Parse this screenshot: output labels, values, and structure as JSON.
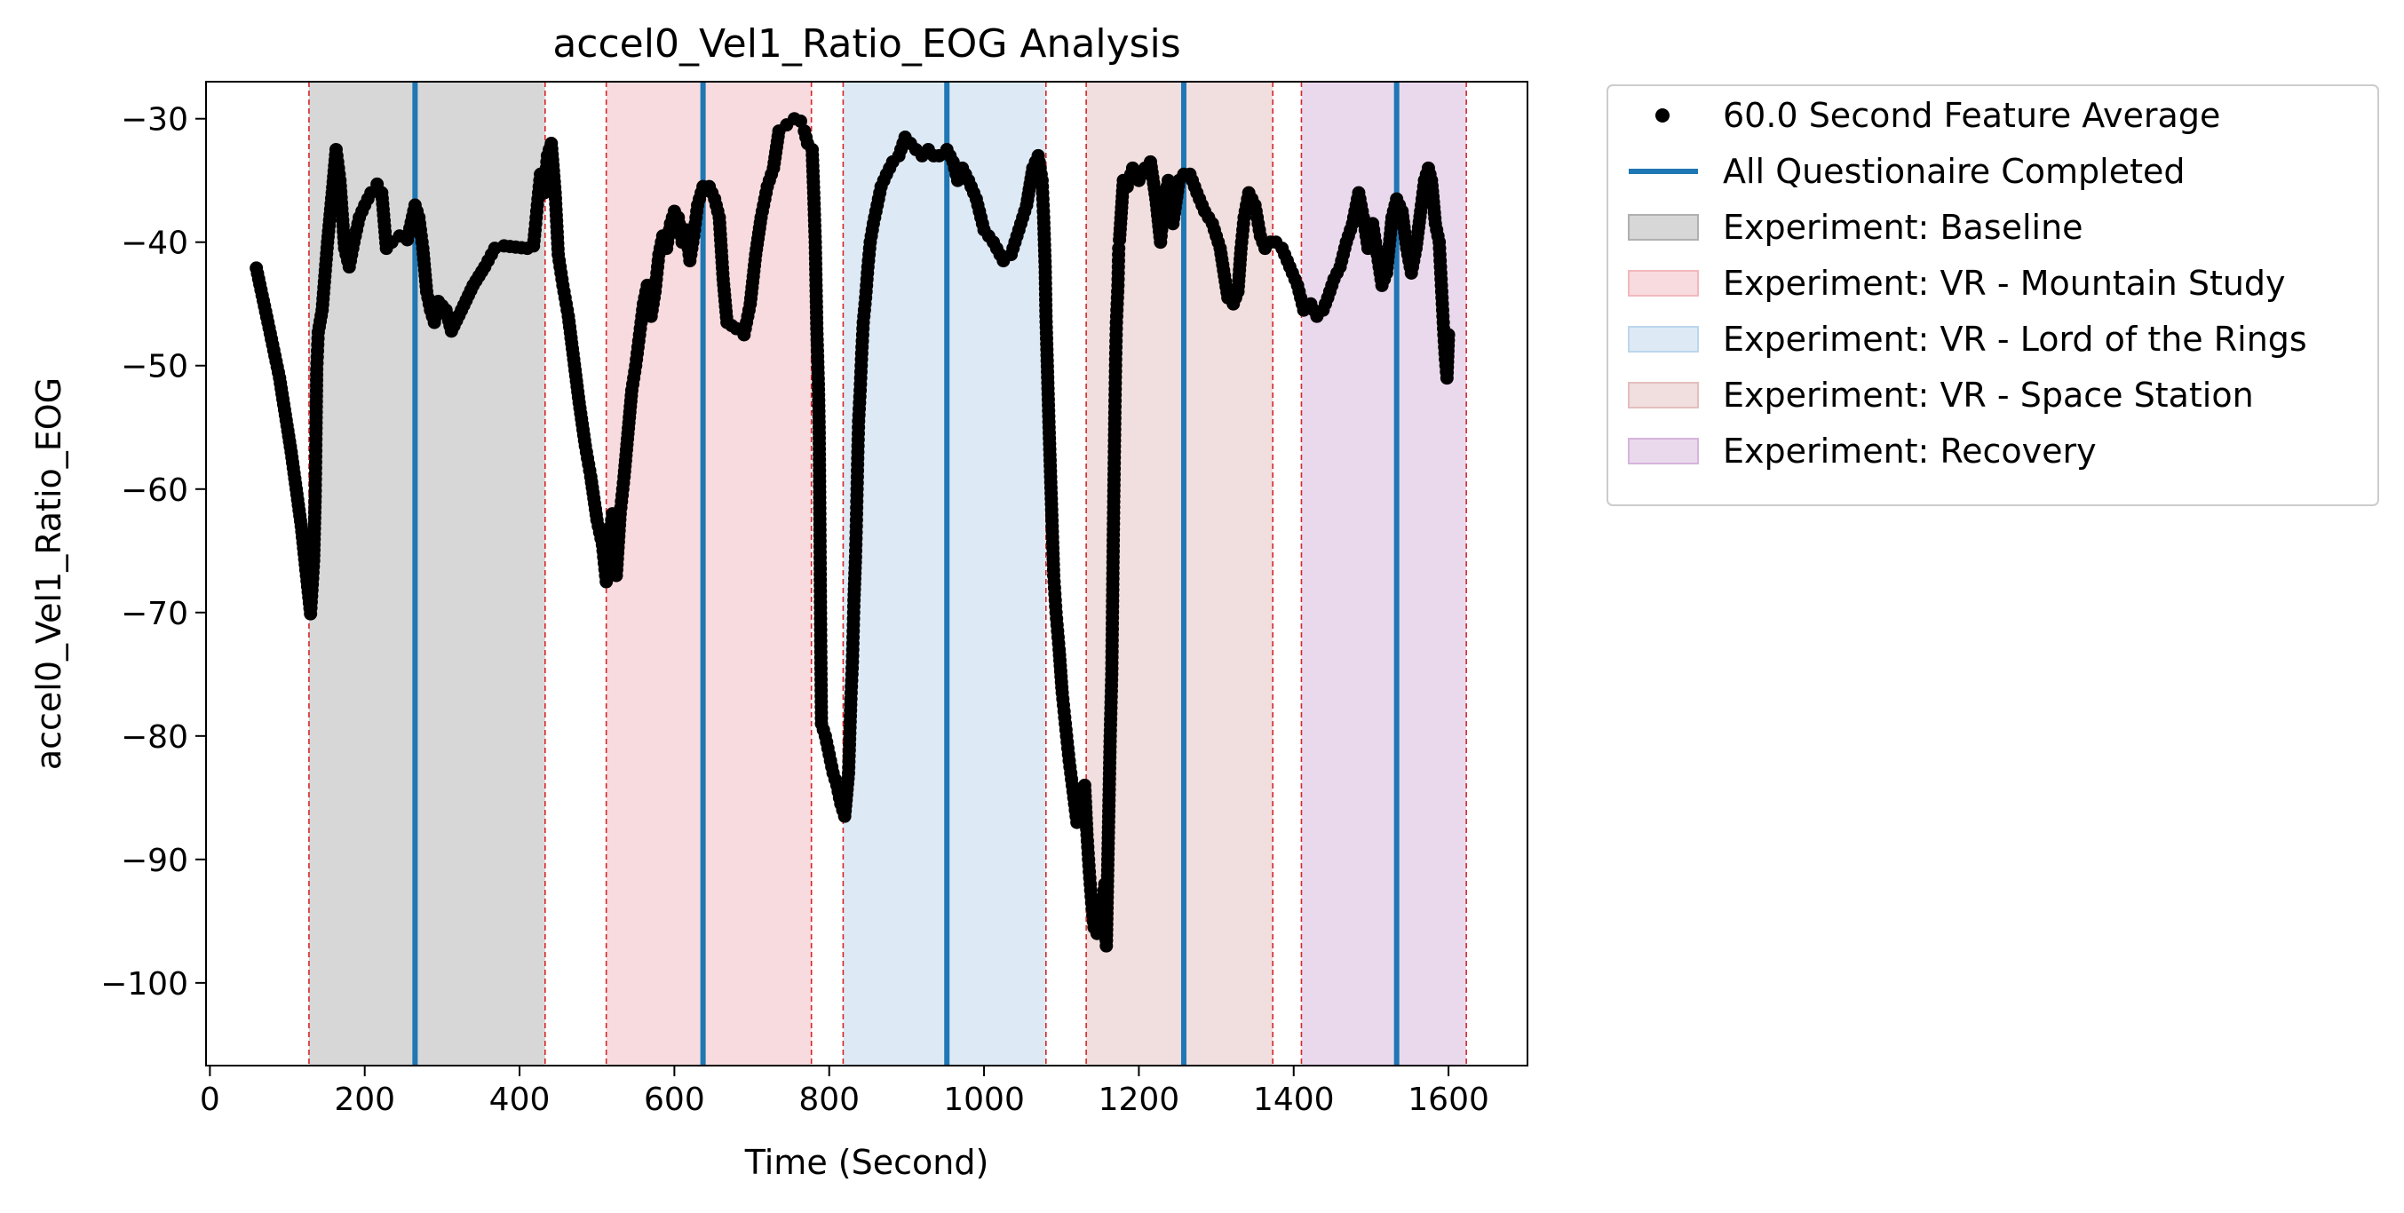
{
  "chart_data": {
    "type": "scatter",
    "title": "accel0_Vel1_Ratio_EOG Analysis",
    "xlabel": "Time (Second)",
    "ylabel": "accel0_Vel1_Ratio_EOG",
    "xlim": [
      -5,
      1702
    ],
    "ylim": [
      -106.7,
      -27.0
    ],
    "xticks": [
      0,
      200,
      400,
      600,
      800,
      1000,
      1200,
      1400,
      1600
    ],
    "yticks": [
      -100,
      -90,
      -80,
      -70,
      -60,
      -50,
      -40,
      -30
    ],
    "grid": false,
    "legend_position": "outside-right-top",
    "colors": {
      "points": "#000000",
      "questionnaire_line": "#1f77b4",
      "boundary_line": "#d62728"
    },
    "legend": [
      {
        "label": "60.0 Second Feature Average",
        "kind": "marker",
        "color": "#000000"
      },
      {
        "label": "All Questionaire Completed",
        "kind": "line",
        "color": "#1f77b4"
      },
      {
        "label": "Experiment: Baseline",
        "kind": "patch",
        "color": "#b0b0b0"
      },
      {
        "label": "Experiment: VR - Mountain Study",
        "kind": "patch",
        "color": "#f2b8bd"
      },
      {
        "label": "Experiment: VR - Lord of the Rings",
        "kind": "patch",
        "color": "#bcd6ec"
      },
      {
        "label": "Experiment: VR - Space Station",
        "kind": "patch",
        "color": "#e3bebe"
      },
      {
        "label": "Experiment: Recovery",
        "kind": "patch",
        "color": "#d6b4dc"
      }
    ],
    "phases": [
      {
        "name": "Experiment: Baseline",
        "start": 128,
        "end": 433,
        "color": "#b0b0b0"
      },
      {
        "name": "Experiment: VR - Mountain Study",
        "start": 512,
        "end": 777,
        "color": "#f2b8bd"
      },
      {
        "name": "Experiment: VR - Lord of the Rings",
        "start": 818,
        "end": 1080,
        "color": "#bcd6ec"
      },
      {
        "name": "Experiment: VR - Space Station",
        "start": 1132,
        "end": 1373,
        "color": "#e3bebe"
      },
      {
        "name": "Experiment: Recovery",
        "start": 1410,
        "end": 1623,
        "color": "#d6b4dc"
      }
    ],
    "questionnaire_completed": [
      265,
      637,
      952,
      1258,
      1533
    ],
    "series": [
      {
        "name": "60.0 Second Feature Average",
        "points": [
          [
            60,
            -42.1
          ],
          [
            75,
            -46.5
          ],
          [
            90,
            -51.0
          ],
          [
            105,
            -57.0
          ],
          [
            118,
            -63.0
          ],
          [
            130,
            -70.1
          ],
          [
            134,
            -65.8
          ],
          [
            136,
            -60.6
          ],
          [
            137,
            -55.5
          ],
          [
            138,
            -50.3
          ],
          [
            140,
            -47.3
          ],
          [
            145,
            -45.5
          ],
          [
            152,
            -40.0
          ],
          [
            158,
            -36.0
          ],
          [
            163,
            -32.5
          ],
          [
            168,
            -35.0
          ],
          [
            174,
            -40.5
          ],
          [
            180,
            -42.0
          ],
          [
            186,
            -40.0
          ],
          [
            193,
            -38.0
          ],
          [
            200,
            -37.0
          ],
          [
            208,
            -36.0
          ],
          [
            216,
            -35.3
          ],
          [
            222,
            -36.0
          ],
          [
            228,
            -40.5
          ],
          [
            235,
            -40.0
          ],
          [
            245,
            -39.5
          ],
          [
            255,
            -39.8
          ],
          [
            265,
            -37.0
          ],
          [
            270,
            -38.0
          ],
          [
            275,
            -40.5
          ],
          [
            280,
            -44.0
          ],
          [
            285,
            -45.5
          ],
          [
            290,
            -46.5
          ],
          [
            295,
            -44.8
          ],
          [
            305,
            -45.5
          ],
          [
            312,
            -47.2
          ],
          [
            325,
            -45.5
          ],
          [
            340,
            -43.5
          ],
          [
            355,
            -42.0
          ],
          [
            368,
            -40.5
          ],
          [
            380,
            -40.3
          ],
          [
            395,
            -40.4
          ],
          [
            410,
            -40.5
          ],
          [
            418,
            -40.3
          ],
          [
            420,
            -39.0
          ],
          [
            423,
            -37.0
          ],
          [
            427,
            -34.5
          ],
          [
            432,
            -36.0
          ],
          [
            436,
            -33.0
          ],
          [
            441,
            -32.0
          ],
          [
            446,
            -36.0
          ],
          [
            450,
            -41.0
          ],
          [
            456,
            -43.5
          ],
          [
            463,
            -46.0
          ],
          [
            470,
            -49.5
          ],
          [
            477,
            -53.0
          ],
          [
            485,
            -56.5
          ],
          [
            492,
            -59.0
          ],
          [
            500,
            -62.5
          ],
          [
            507,
            -64.5
          ],
          [
            512,
            -67.5
          ],
          [
            516,
            -64.0
          ],
          [
            520,
            -62.0
          ],
          [
            525,
            -67.0
          ],
          [
            530,
            -62.0
          ],
          [
            535,
            -59.0
          ],
          [
            540,
            -55.5
          ],
          [
            545,
            -52.0
          ],
          [
            550,
            -50.0
          ],
          [
            555,
            -47.5
          ],
          [
            560,
            -45.0
          ],
          [
            565,
            -43.5
          ],
          [
            570,
            -46.0
          ],
          [
            575,
            -44.0
          ],
          [
            580,
            -41.0
          ],
          [
            585,
            -39.5
          ],
          [
            590,
            -40.5
          ],
          [
            595,
            -38.5
          ],
          [
            600,
            -37.5
          ],
          [
            605,
            -38.0
          ],
          [
            610,
            -40.0
          ],
          [
            615,
            -39.0
          ],
          [
            620,
            -41.5
          ],
          [
            625,
            -39.5
          ],
          [
            630,
            -37.0
          ],
          [
            637,
            -35.5
          ],
          [
            645,
            -35.5
          ],
          [
            652,
            -36.5
          ],
          [
            658,
            -38.0
          ],
          [
            663,
            -43.0
          ],
          [
            668,
            -46.5
          ],
          [
            680,
            -47.0
          ],
          [
            690,
            -47.5
          ],
          [
            698,
            -45.0
          ],
          [
            705,
            -41.0
          ],
          [
            712,
            -38.0
          ],
          [
            720,
            -35.5
          ],
          [
            728,
            -34.0
          ],
          [
            735,
            -31.0
          ],
          [
            745,
            -30.5
          ],
          [
            755,
            -30.0
          ],
          [
            763,
            -30.2
          ],
          [
            768,
            -31.0
          ],
          [
            772,
            -32.0
          ],
          [
            778,
            -32.5
          ],
          [
            780,
            -36.0
          ],
          [
            782,
            -40.0
          ],
          [
            783,
            -43.5
          ],
          [
            784,
            -47.0
          ],
          [
            786,
            -51.5
          ],
          [
            787,
            -55.0
          ],
          [
            788,
            -63.3
          ],
          [
            789,
            -72.3
          ],
          [
            790,
            -79.0
          ],
          [
            795,
            -80.0
          ],
          [
            800,
            -81.5
          ],
          [
            805,
            -83.0
          ],
          [
            810,
            -84.0
          ],
          [
            815,
            -85.5
          ],
          [
            820,
            -86.5
          ],
          [
            825,
            -83.0
          ],
          [
            828,
            -77.0
          ],
          [
            830,
            -74.0
          ],
          [
            831,
            -71.5
          ],
          [
            832,
            -69.0
          ],
          [
            834,
            -65.5
          ],
          [
            835,
            -63.0
          ],
          [
            836,
            -60.0
          ],
          [
            837,
            -57.0
          ],
          [
            838,
            -54.5
          ],
          [
            840,
            -52.0
          ],
          [
            842,
            -49.0
          ],
          [
            844,
            -46.5
          ],
          [
            847,
            -44.5
          ],
          [
            850,
            -42.0
          ],
          [
            853,
            -40.0
          ],
          [
            857,
            -38.5
          ],
          [
            862,
            -37.0
          ],
          [
            867,
            -35.5
          ],
          [
            874,
            -34.5
          ],
          [
            882,
            -33.5
          ],
          [
            890,
            -33.0
          ],
          [
            898,
            -31.5
          ],
          [
            905,
            -32.0
          ],
          [
            912,
            -32.5
          ],
          [
            920,
            -33.0
          ],
          [
            928,
            -32.5
          ],
          [
            935,
            -33.0
          ],
          [
            942,
            -33.0
          ],
          [
            952,
            -32.5
          ],
          [
            960,
            -33.5
          ],
          [
            966,
            -35.0
          ],
          [
            972,
            -34.0
          ],
          [
            980,
            -35.0
          ],
          [
            990,
            -36.5
          ],
          [
            1000,
            -39.0
          ],
          [
            1012,
            -40.0
          ],
          [
            1025,
            -41.5
          ],
          [
            1035,
            -41.0
          ],
          [
            1045,
            -39.0
          ],
          [
            1055,
            -37.0
          ],
          [
            1063,
            -34.0
          ],
          [
            1070,
            -33.0
          ],
          [
            1075,
            -35.0
          ],
          [
            1077,
            -38.0
          ],
          [
            1079,
            -42.0
          ],
          [
            1080,
            -46.0
          ],
          [
            1082,
            -50.5
          ],
          [
            1084,
            -55.0
          ],
          [
            1086,
            -59.0
          ],
          [
            1088,
            -63.0
          ],
          [
            1090,
            -67.0
          ],
          [
            1093,
            -70.0
          ],
          [
            1097,
            -73.0
          ],
          [
            1101,
            -76.5
          ],
          [
            1105,
            -79.0
          ],
          [
            1110,
            -82.0
          ],
          [
            1115,
            -84.5
          ],
          [
            1120,
            -87.0
          ],
          [
            1126,
            -86.0
          ],
          [
            1130,
            -84.0
          ],
          [
            1133,
            -88.0
          ],
          [
            1136,
            -91.0
          ],
          [
            1139,
            -93.5
          ],
          [
            1142,
            -95.5
          ],
          [
            1146,
            -96.0
          ],
          [
            1150,
            -95.0
          ],
          [
            1154,
            -93.0
          ],
          [
            1156,
            -92.0
          ],
          [
            1158,
            -97.0
          ],
          [
            1160,
            -90.0
          ],
          [
            1163,
            -80.0
          ],
          [
            1165,
            -75.0
          ],
          [
            1166,
            -69.5
          ],
          [
            1167,
            -63.7
          ],
          [
            1168,
            -58.8
          ],
          [
            1169,
            -53.8
          ],
          [
            1170,
            -49.5
          ],
          [
            1171,
            -46.5
          ],
          [
            1173,
            -43.5
          ],
          [
            1174,
            -40.5
          ],
          [
            1175,
            -39.8
          ],
          [
            1180,
            -35.0
          ],
          [
            1185,
            -35.5
          ],
          [
            1192,
            -34.0
          ],
          [
            1200,
            -35.0
          ],
          [
            1208,
            -34.0
          ],
          [
            1215,
            -33.5
          ],
          [
            1222,
            -36.5
          ],
          [
            1228,
            -40.0
          ],
          [
            1232,
            -37.0
          ],
          [
            1238,
            -35.0
          ],
          [
            1244,
            -38.5
          ],
          [
            1252,
            -35.0
          ],
          [
            1258,
            -34.5
          ],
          [
            1266,
            -34.5
          ],
          [
            1275,
            -36.0
          ],
          [
            1285,
            -37.5
          ],
          [
            1295,
            -38.5
          ],
          [
            1305,
            -40.5
          ],
          [
            1315,
            -44.5
          ],
          [
            1322,
            -45.0
          ],
          [
            1328,
            -44.0
          ],
          [
            1332,
            -40.5
          ],
          [
            1336,
            -38.0
          ],
          [
            1342,
            -36.0
          ],
          [
            1350,
            -37.0
          ],
          [
            1357,
            -39.5
          ],
          [
            1363,
            -40.5
          ],
          [
            1370,
            -40.0
          ],
          [
            1377,
            -40.0
          ],
          [
            1385,
            -40.5
          ],
          [
            1395,
            -42.0
          ],
          [
            1405,
            -43.5
          ],
          [
            1413,
            -45.5
          ],
          [
            1422,
            -45.0
          ],
          [
            1430,
            -46.0
          ],
          [
            1438,
            -45.5
          ],
          [
            1444,
            -44.5
          ],
          [
            1452,
            -43.0
          ],
          [
            1460,
            -42.0
          ],
          [
            1468,
            -40.0
          ],
          [
            1476,
            -38.5
          ],
          [
            1484,
            -36.0
          ],
          [
            1490,
            -38.0
          ],
          [
            1496,
            -40.5
          ],
          [
            1502,
            -38.5
          ],
          [
            1508,
            -41.0
          ],
          [
            1514,
            -43.5
          ],
          [
            1520,
            -42.5
          ],
          [
            1527,
            -38.0
          ],
          [
            1533,
            -36.5
          ],
          [
            1540,
            -37.5
          ],
          [
            1546,
            -40.5
          ],
          [
            1552,
            -42.5
          ],
          [
            1558,
            -40.5
          ],
          [
            1564,
            -37.5
          ],
          [
            1569,
            -35.0
          ],
          [
            1574,
            -34.0
          ],
          [
            1578,
            -35.0
          ],
          [
            1583,
            -38.5
          ],
          [
            1588,
            -40.0
          ],
          [
            1590,
            -42.5
          ],
          [
            1592,
            -45.0
          ],
          [
            1594,
            -47.5
          ],
          [
            1596,
            -49.5
          ],
          [
            1598,
            -51.0
          ],
          [
            1600,
            -47.5
          ]
        ]
      }
    ]
  }
}
